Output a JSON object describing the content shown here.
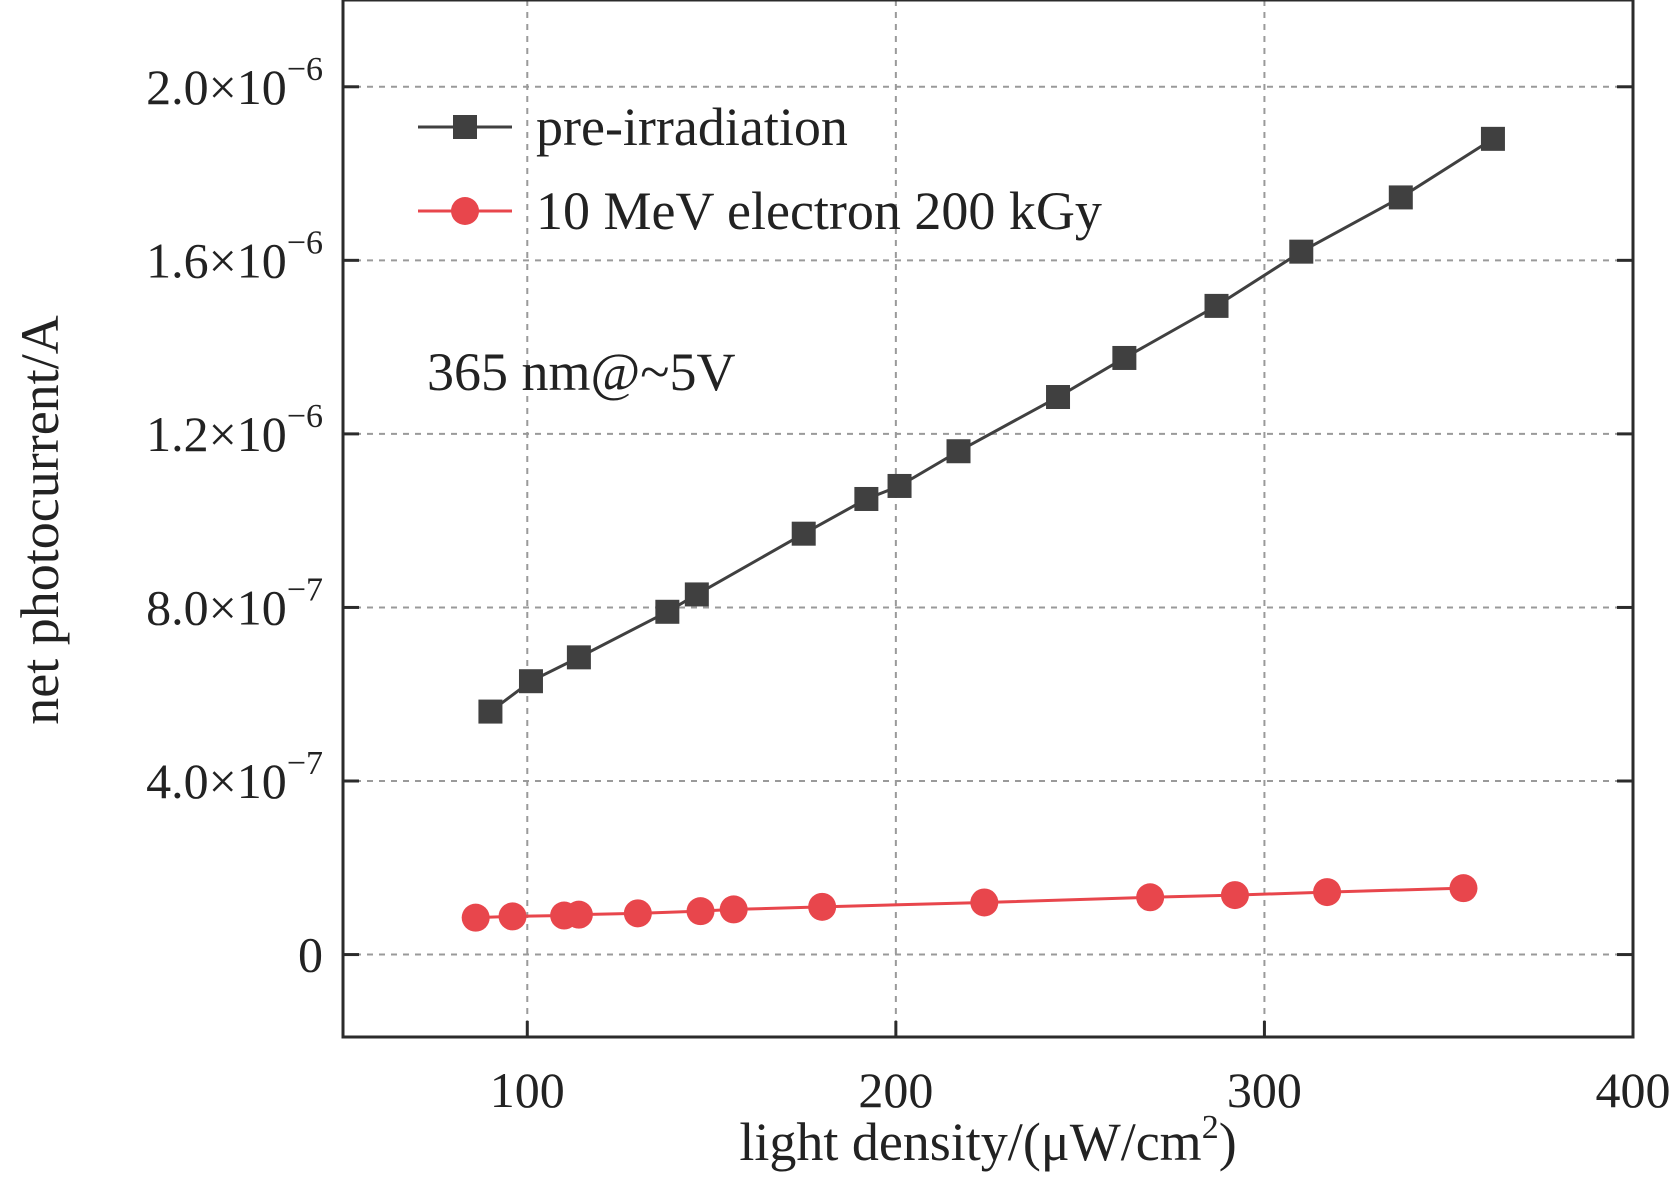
{
  "chart_data": {
    "type": "line",
    "xlabel": "light density/(μW/cm",
    "xlabel_sup": "2",
    "xlabel_end": ")",
    "ylabel": "net photocurrent/A",
    "xlim": [
      50,
      400
    ],
    "ylim": [
      -1.9e-07,
      2.2e-06
    ],
    "grid": true,
    "legend_position": "top-left",
    "annotation": "365 nm@~5V",
    "x_ticks": [
      {
        "value": 100,
        "label": "100"
      },
      {
        "value": 200,
        "label": "200"
      },
      {
        "value": 300,
        "label": "300"
      },
      {
        "value": 400,
        "label": "400"
      }
    ],
    "y_ticks": [
      {
        "value": 0,
        "mant": "0",
        "exp": ""
      },
      {
        "value": 4e-07,
        "mant": "4.0×10",
        "exp": "−7"
      },
      {
        "value": 8e-07,
        "mant": "8.0×10",
        "exp": "−7"
      },
      {
        "value": 1.2e-06,
        "mant": "1.2×10",
        "exp": "−6"
      },
      {
        "value": 1.6e-06,
        "mant": "1.6×10",
        "exp": "−6"
      },
      {
        "value": 2e-06,
        "mant": "2.0×10",
        "exp": "−6"
      }
    ],
    "series": [
      {
        "name": "pre-irradiation",
        "color": "#404040",
        "marker": "square",
        "x": [
          90,
          101,
          114,
          138,
          146,
          175,
          192,
          201,
          217,
          244,
          262,
          287,
          310,
          337,
          362
        ],
        "y": [
          5.6e-07,
          6.3e-07,
          6.85e-07,
          7.9e-07,
          8.3e-07,
          9.7e-07,
          1.05e-06,
          1.08e-06,
          1.16e-06,
          1.285e-06,
          1.375e-06,
          1.495e-06,
          1.62e-06,
          1.745e-06,
          1.88e-06
        ]
      },
      {
        "name": "10 MeV electron 200 kGy",
        "color": "#e8464c",
        "marker": "circle",
        "x": [
          86,
          96,
          110,
          114,
          130,
          147,
          156,
          180,
          224,
          269,
          292,
          317,
          354
        ],
        "y": [
          8.5e-08,
          8.8e-08,
          9e-08,
          9.2e-08,
          9.5e-08,
          1e-07,
          1.04e-07,
          1.1e-07,
          1.2e-07,
          1.32e-07,
          1.37e-07,
          1.44e-07,
          1.53e-07
        ]
      }
    ]
  }
}
